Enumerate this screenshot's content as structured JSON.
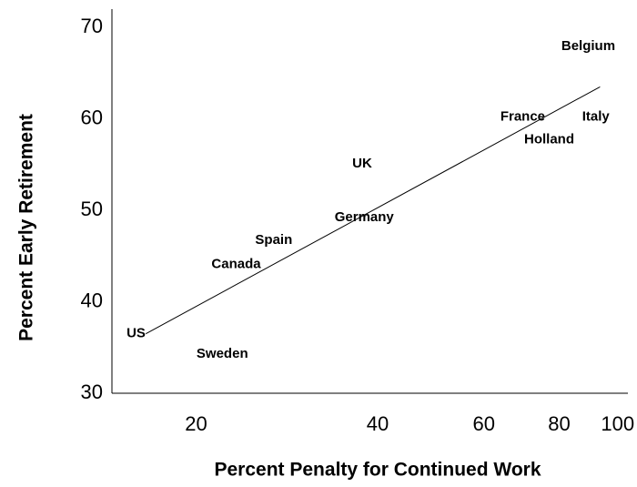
{
  "chart_data": {
    "type": "scatter",
    "x_label": "Percent Penalty for Continued Work",
    "y_label": "Percent Early Retirement",
    "x_scale": "log",
    "xlim": [
      14.5,
      104
    ],
    "ylim": [
      30,
      72
    ],
    "xticks": [
      20,
      40,
      60,
      80,
      100
    ],
    "yticks": [
      30,
      40,
      50,
      60,
      70
    ],
    "grid": false,
    "points": [
      {
        "label": "US",
        "x": 15.9,
        "y": 36.5
      },
      {
        "label": "Sweden",
        "x": 22.1,
        "y": 34.3
      },
      {
        "label": "Canada",
        "x": 23.3,
        "y": 44.1
      },
      {
        "label": "Spain",
        "x": 26.9,
        "y": 46.7
      },
      {
        "label": "Germany",
        "x": 38,
        "y": 49.2
      },
      {
        "label": "UK",
        "x": 37.7,
        "y": 55.1
      },
      {
        "label": "France",
        "x": 69.6,
        "y": 60.2
      },
      {
        "label": "Holland",
        "x": 77,
        "y": 57.7
      },
      {
        "label": "Italy",
        "x": 92,
        "y": 60.2
      },
      {
        "label": "Belgium",
        "x": 89.4,
        "y": 67.9
      }
    ],
    "trend_line": {
      "x": [
        16.5,
        93.5
      ],
      "y": [
        36.5,
        63.5
      ],
      "color": "#000000"
    }
  }
}
